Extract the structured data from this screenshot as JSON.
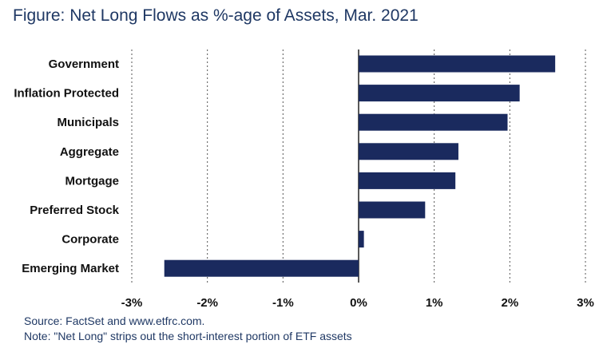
{
  "figure_title": {
    "prefix": "Figure:",
    "text": "Net Long Flows as %-age of Assets, Mar. 2021"
  },
  "chart_data": {
    "type": "bar",
    "orientation": "horizontal",
    "categories": [
      "Government",
      "Inflation Protected",
      "Municipals",
      "Aggregate",
      "Mortgage",
      "Preferred Stock",
      "Corporate",
      "Emerging Market"
    ],
    "values": [
      2.6,
      2.13,
      1.97,
      1.32,
      1.28,
      0.88,
      0.07,
      -2.57
    ],
    "unit": "%",
    "xlim": [
      -3,
      3
    ],
    "x_ticks": [
      -3,
      -2,
      -1,
      0,
      1,
      2,
      3
    ],
    "x_tick_labels": [
      "-3%",
      "-2%",
      "-1%",
      "0%",
      "1%",
      "2%",
      "3%"
    ],
    "grid": "vertical dotted",
    "bar_color": "#1a2a5e",
    "legend": "none"
  },
  "notes": {
    "source": "Source: FactSet and www.etfrc.com.",
    "note": "Note: \"Net Long\" strips out the short-interest portion of ETF assets"
  }
}
